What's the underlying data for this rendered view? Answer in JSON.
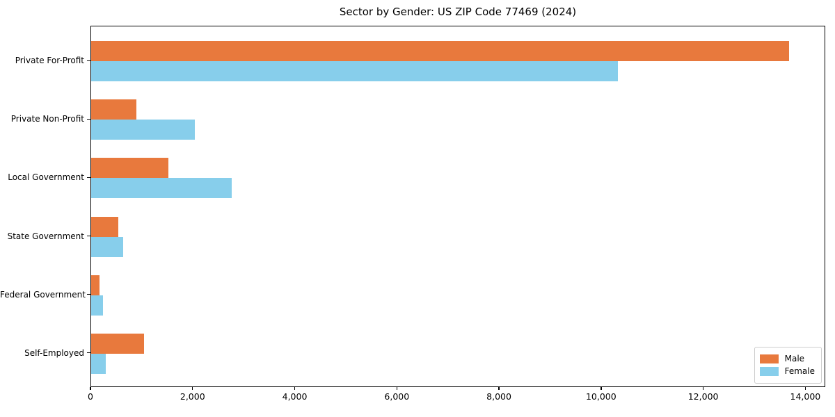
{
  "title": "Sector by Gender: US ZIP Code 77469 (2024)",
  "chart_data": {
    "type": "bar",
    "orientation": "horizontal",
    "title": "Sector by Gender: US ZIP Code 77469 (2024)",
    "categories": [
      "Private For-Profit",
      "Private Non-Profit",
      "Local Government",
      "State Government",
      "Federal Government",
      "Self-Employed"
    ],
    "series": [
      {
        "name": "Male",
        "color": "#e8793d",
        "values": [
          13700,
          890,
          1510,
          530,
          160,
          1040
        ]
      },
      {
        "name": "Female",
        "color": "#87ceeb",
        "values": [
          10340,
          2030,
          2760,
          630,
          230,
          290
        ]
      }
    ],
    "xlabel": "",
    "ylabel": "",
    "xlim": [
      0,
      14390
    ],
    "x_ticks": [
      0,
      2000,
      4000,
      6000,
      8000,
      10000,
      12000,
      14000
    ],
    "x_tick_labels": [
      "0",
      "2,000",
      "4,000",
      "6,000",
      "8,000",
      "10,000",
      "12,000",
      "14,000"
    ],
    "grid": false,
    "legend_position": "lower right",
    "background_color": "#ffffff",
    "axis_color": "#000000"
  }
}
